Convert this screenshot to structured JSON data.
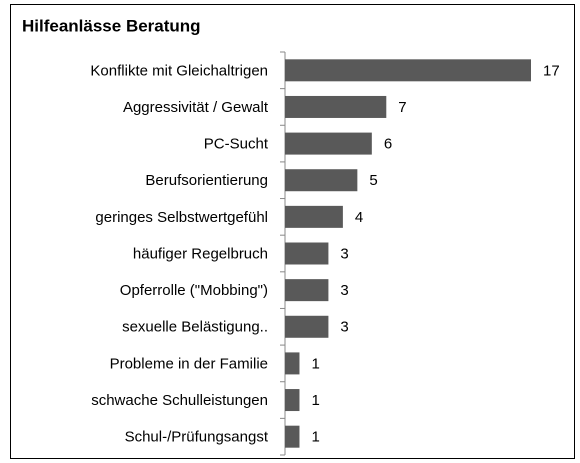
{
  "chart_data": {
    "type": "barh",
    "title": "Hilfeanlässe Beratung",
    "categories": [
      "Konflikte mit Gleichaltrigen",
      "Aggressivität / Gewalt",
      "PC-Sucht",
      "Berufsorientierung",
      "geringes Selbstwertgefühl",
      "häufiger Regelbruch",
      "Opferrolle (\"Mobbing\")",
      "sexuelle Belästigung..",
      "Probleme in der Familie",
      "schwache Schulleistungen",
      "Schul-/Prüfungsangst"
    ],
    "values": [
      17,
      7,
      6,
      5,
      4,
      3,
      3,
      3,
      1,
      1,
      1
    ],
    "color": "#595959",
    "xlim": [
      0,
      17
    ]
  }
}
